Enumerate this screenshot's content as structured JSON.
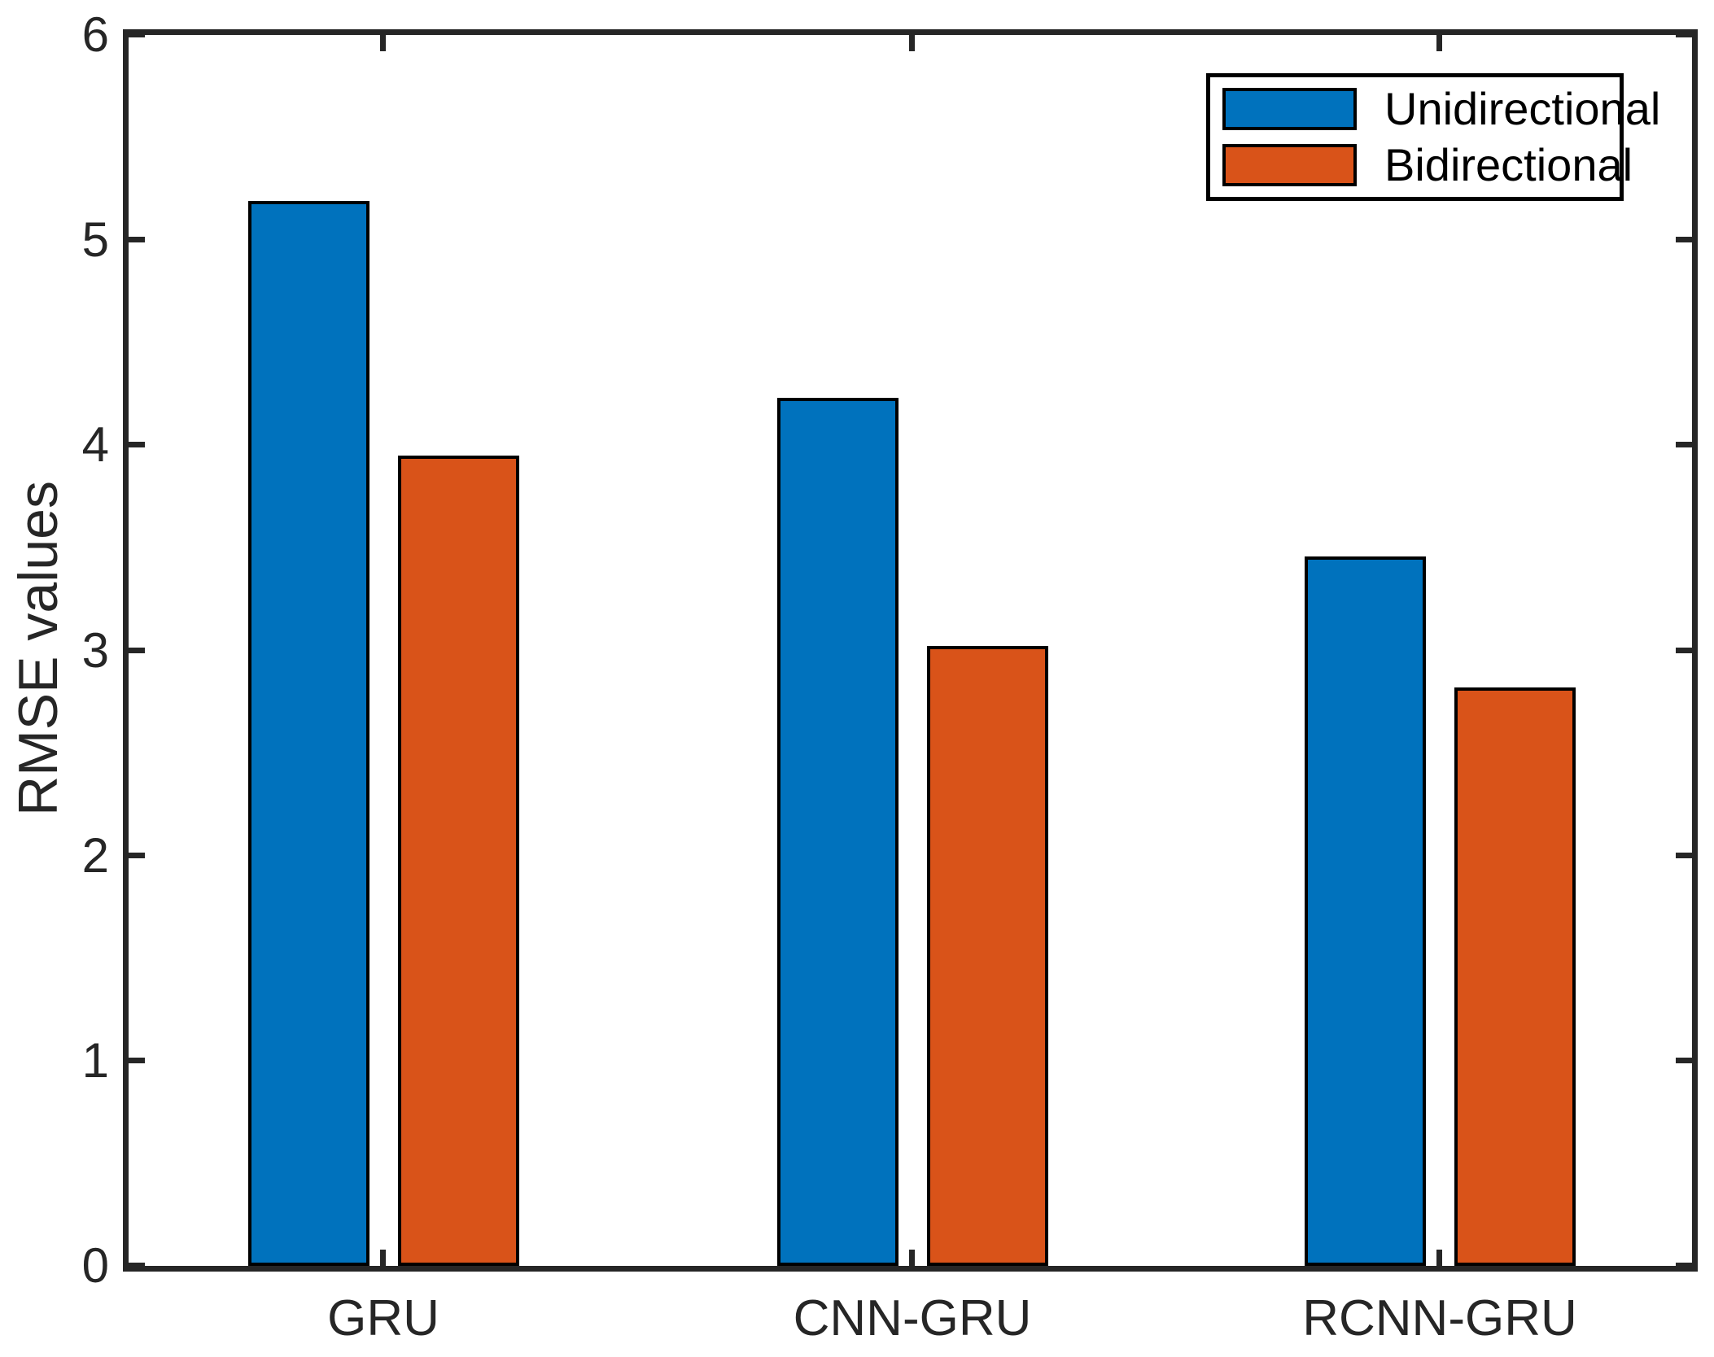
{
  "chart_data": {
    "type": "bar",
    "title": "",
    "categories": [
      "GRU",
      "CNN-GRU",
      "RCNN-GRU"
    ],
    "series": [
      {
        "name": "Unidirectional",
        "color": "#0072BD",
        "values": [
          5.19,
          4.23,
          3.46
        ]
      },
      {
        "name": "Bidirectional",
        "color": "#D95319",
        "values": [
          3.95,
          3.02,
          2.82
        ]
      }
    ],
    "xlabel": "",
    "ylabel": "RMSE values",
    "ylim": [
      0,
      6
    ],
    "yticks": [
      0,
      1,
      2,
      3,
      4,
      5,
      6
    ],
    "ytick_labels": [
      "0",
      "1",
      "2",
      "3",
      "4",
      "5",
      "6"
    ],
    "grid": false,
    "legend_position": "top-right",
    "bar_edge_color": "#000000",
    "axis_color": "#262626"
  }
}
